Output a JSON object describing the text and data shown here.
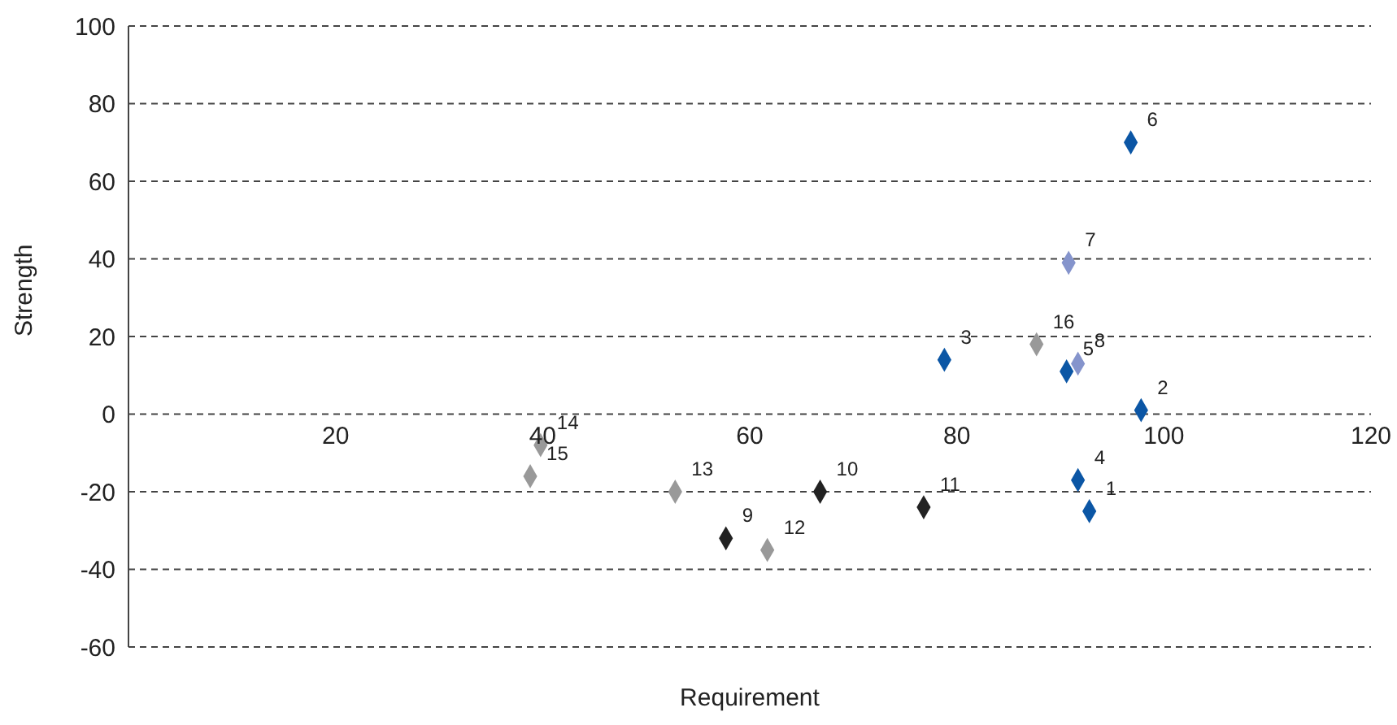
{
  "chart_data": {
    "type": "scatter",
    "xlabel": "Requirement",
    "ylabel": "Strength",
    "xlim": [
      0,
      120
    ],
    "xticks": [
      20,
      40,
      60,
      80,
      100,
      120
    ],
    "ylim": [
      -60,
      100
    ],
    "yticks": [
      -60,
      -40,
      -20,
      0,
      20,
      40,
      60,
      80,
      100
    ],
    "grid": "y",
    "marker": "diamond",
    "series": [
      {
        "color": "#0b56a5",
        "x": [
          92.8,
          97.8,
          78.8,
          91.7,
          90.6,
          96.8
        ],
        "values": [
          -25,
          1,
          14,
          -17,
          11,
          70
        ]
      },
      {
        "color": "#8594cc",
        "x": [
          90.8,
          91.7
        ],
        "values": [
          39,
          13
        ]
      },
      {
        "color": "#222222",
        "x": [
          57.7,
          66.8,
          76.8
        ],
        "values": [
          -32,
          -20,
          -24
        ]
      },
      {
        "color": "#999999",
        "x": [
          61.7,
          52.8,
          39.8,
          38.8,
          87.7
        ],
        "values": [
          -35,
          -20,
          -8,
          -16,
          18
        ]
      }
    ],
    "annotations": [
      {
        "text": "1",
        "x": 92.8,
        "y": -25
      },
      {
        "text": "2",
        "x": 97.8,
        "y": 1
      },
      {
        "text": "3",
        "x": 78.8,
        "y": 14
      },
      {
        "text": "4",
        "x": 91.7,
        "y": -17
      },
      {
        "text": "5",
        "x": 90.6,
        "y": 11
      },
      {
        "text": "6",
        "x": 96.8,
        "y": 70
      },
      {
        "text": "7",
        "x": 90.8,
        "y": 39
      },
      {
        "text": "8",
        "x": 91.7,
        "y": 13
      },
      {
        "text": "9",
        "x": 57.7,
        "y": -32
      },
      {
        "text": "10",
        "x": 66.8,
        "y": -20
      },
      {
        "text": "11",
        "x": 76.8,
        "y": -24
      },
      {
        "text": "12",
        "x": 61.7,
        "y": -35
      },
      {
        "text": "13",
        "x": 52.8,
        "y": -20
      },
      {
        "text": "14",
        "x": 39.8,
        "y": -8
      },
      {
        "text": "15",
        "x": 38.8,
        "y": -16
      },
      {
        "text": "16",
        "x": 87.7,
        "y": 18
      }
    ]
  }
}
